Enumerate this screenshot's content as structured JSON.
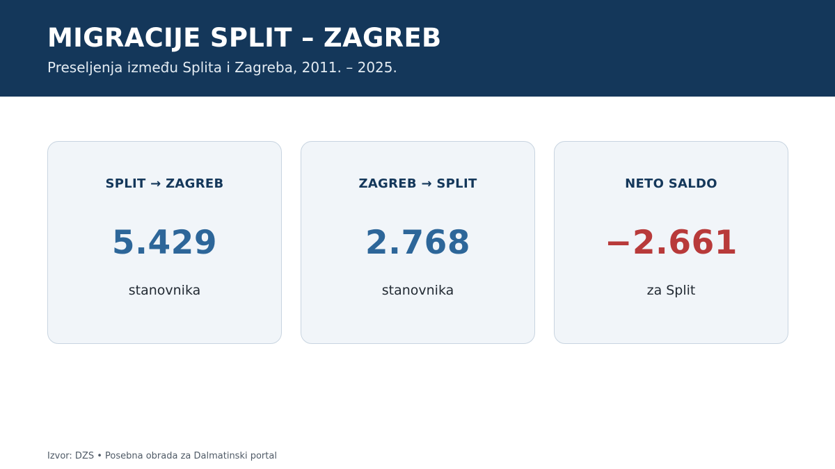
{
  "header": {
    "title": "MIGRACIJE SPLIT – ZAGREB",
    "subtitle": "Preseljenja između Splita i Zagreba, 2011. – 2025."
  },
  "cards": [
    {
      "label": "SPLIT → ZAGREB",
      "value": "5.429",
      "unit": "stanovnika"
    },
    {
      "label": "ZAGREB → SPLIT",
      "value": "2.768",
      "unit": "stanovnika"
    },
    {
      "label": "NETO SALDO",
      "value": "−2.661",
      "unit": "za Split"
    }
  ],
  "colors": {
    "header_bg": "#14375a",
    "value_positive": "#2d6699",
    "value_negative": "#b83a3a"
  },
  "footer": {
    "source": "Izvor: DZS • Posebna obrada za Dalmatinski portal"
  }
}
